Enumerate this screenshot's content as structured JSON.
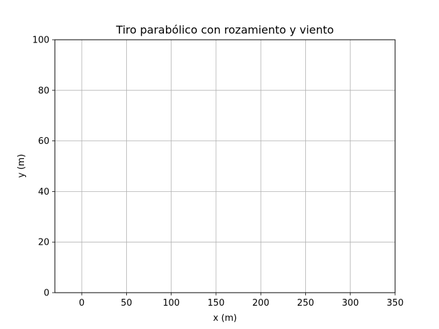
{
  "chart_data": {
    "type": "line",
    "title": "Tiro parabólico con rozamiento y viento",
    "xlabel": "x (m)",
    "ylabel": "y (m)",
    "xlim": [
      -30,
      350
    ],
    "ylim": [
      0,
      100
    ],
    "xticks": [
      0,
      50,
      100,
      150,
      200,
      250,
      300,
      350
    ],
    "yticks": [
      0,
      20,
      40,
      60,
      80,
      100
    ],
    "xtick_labels": [
      "0",
      "50",
      "100",
      "150",
      "200",
      "250",
      "300",
      "350"
    ],
    "ytick_labels": [
      "0",
      "20",
      "40",
      "60",
      "80",
      "100"
    ],
    "grid": true,
    "legend": "none",
    "series": [],
    "colors": {
      "grid": "#b0b0b0",
      "axes": "#000000",
      "background": "#ffffff"
    }
  }
}
